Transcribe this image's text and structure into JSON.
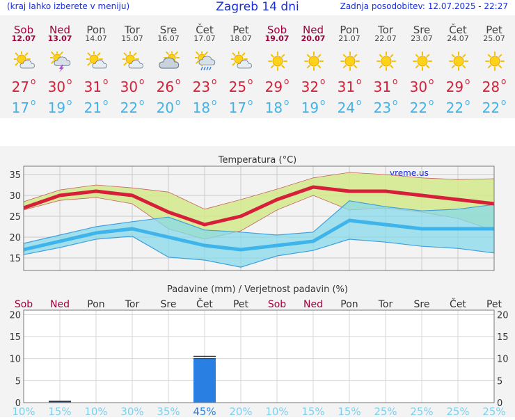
{
  "header": {
    "note": "(kraj lahko izberete v meniju)",
    "title": "Zagreb 14 dni",
    "updated": "Zadnja posodobitev: 12.07.2025 - 22:27"
  },
  "colors": {
    "title": "#1a2fd6",
    "weekend": "#a0003c",
    "temp_high": "#d6203a",
    "temp_low": "#3fb4ea",
    "precip_bar": "#2a7fe3"
  },
  "degree_symbol": "o",
  "days": [
    {
      "name": "Sob",
      "date": "12.07",
      "weekend": true,
      "icon": "sun-cloud-icon",
      "high": "27",
      "low": "17"
    },
    {
      "name": "Ned",
      "date": "13.07",
      "weekend": true,
      "icon": "thunderstorm-icon",
      "high": "30",
      "low": "19"
    },
    {
      "name": "Pon",
      "date": "14.07",
      "weekend": false,
      "icon": "sun-cloud-icon",
      "high": "31",
      "low": "21"
    },
    {
      "name": "Tor",
      "date": "15.07",
      "weekend": false,
      "icon": "sun-cloud-icon",
      "high": "30",
      "low": "22"
    },
    {
      "name": "Sre",
      "date": "16.07",
      "weekend": false,
      "icon": "cloudy-sun-icon",
      "high": "26",
      "low": "20"
    },
    {
      "name": "Čet",
      "date": "17.07",
      "weekend": false,
      "icon": "rain-sun-icon",
      "high": "23",
      "low": "18"
    },
    {
      "name": "Pet",
      "date": "18.07",
      "weekend": false,
      "icon": "sun-cloud-icon",
      "high": "25",
      "low": "17"
    },
    {
      "name": "Sob",
      "date": "19.07",
      "weekend": true,
      "icon": "sun-icon",
      "high": "29",
      "low": "18"
    },
    {
      "name": "Ned",
      "date": "20.07",
      "weekend": true,
      "icon": "sun-icon",
      "high": "32",
      "low": "19"
    },
    {
      "name": "Pon",
      "date": "21.07",
      "weekend": false,
      "icon": "sun-icon",
      "high": "31",
      "low": "24"
    },
    {
      "name": "Tor",
      "date": "22.07",
      "weekend": false,
      "icon": "sun-icon",
      "high": "31",
      "low": "23"
    },
    {
      "name": "Sre",
      "date": "23.07",
      "weekend": false,
      "icon": "sun-icon",
      "high": "30",
      "low": "22"
    },
    {
      "name": "Čet",
      "date": "24.07",
      "weekend": false,
      "icon": "sun-icon",
      "high": "29",
      "low": "22"
    },
    {
      "name": "Pet",
      "date": "25.07",
      "weekend": false,
      "icon": "sun-icon",
      "high": "28",
      "low": "22"
    }
  ],
  "chart_data": [
    {
      "type": "line",
      "title": "Temperatura (°C)",
      "watermark": "vreme.us",
      "ylim": [
        12,
        37
      ],
      "yticks": [
        15,
        20,
        25,
        30,
        35
      ],
      "grid": true,
      "x": [
        "12.07",
        "13.07",
        "14.07",
        "15.07",
        "16.07",
        "17.07",
        "18.07",
        "19.07",
        "20.07",
        "21.07",
        "22.07",
        "23.07",
        "24.07",
        "25.07"
      ],
      "series": [
        {
          "role": "high",
          "color": "#d6203a",
          "values": [
            27,
            30,
            31,
            30,
            26,
            23,
            25,
            29,
            32,
            31,
            31,
            30,
            29,
            28
          ],
          "band_top": [
            28.5,
            31.3,
            32.5,
            31.8,
            30.8,
            26.7,
            29.0,
            31.5,
            34.2,
            35.5,
            35.0,
            34.2,
            33.8,
            34.0
          ],
          "band_bottom": [
            26.5,
            28.8,
            29.5,
            28.0,
            22.0,
            19.5,
            21.5,
            26.5,
            30.0,
            26.5,
            27.0,
            26.0,
            24.5,
            21.5
          ]
        },
        {
          "role": "low",
          "color": "#3fb4ea",
          "values": [
            17,
            19,
            21,
            22,
            20,
            18,
            17,
            18,
            19,
            24,
            23,
            22,
            22,
            22
          ],
          "band_top": [
            18.5,
            20.5,
            22.5,
            23.7,
            24.8,
            21.7,
            21.2,
            20.5,
            21.2,
            28.7,
            27.3,
            26.3,
            26.7,
            27.8
          ],
          "band_bottom": [
            15.8,
            17.5,
            19.5,
            20.2,
            15.2,
            14.5,
            12.8,
            15.5,
            16.8,
            19.5,
            18.8,
            17.8,
            17.3,
            16.2
          ]
        }
      ]
    },
    {
      "type": "bar",
      "title": "Padavine (mm) / Verjetnost padavin (%)",
      "ylim": [
        0,
        21
      ],
      "yticks": [
        0,
        5,
        10,
        15,
        20
      ],
      "grid": true,
      "categories": [
        "Sob",
        "Ned",
        "Pon",
        "Tor",
        "Sre",
        "Čet",
        "Pet",
        "Sob",
        "Ned",
        "Pon",
        "Tor",
        "Sre",
        "Čet",
        "Pet"
      ],
      "values": [
        0,
        0.2,
        0,
        0,
        0,
        10,
        0,
        0,
        0,
        0,
        0,
        0,
        0,
        0
      ],
      "max_values": [
        0,
        0.3,
        0,
        0,
        0,
        10.5,
        0,
        0,
        0,
        0,
        0,
        0,
        0,
        0
      ],
      "probability": [
        "10%",
        "15%",
        "10%",
        "30%",
        "35%",
        "45%",
        "20%",
        "10%",
        "15%",
        "15%",
        "25%",
        "25%",
        "25%",
        "25%"
      ]
    }
  ]
}
